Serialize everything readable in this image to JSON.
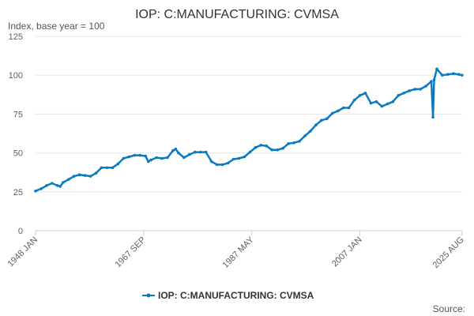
{
  "chart_data": {
    "type": "line",
    "title": "IOP: C:MANUFACTURING: CVMSA",
    "ylabel": "Index, base year = 100",
    "xlabel": "",
    "ylim": [
      0,
      125
    ],
    "yticks": [
      0,
      25,
      50,
      75,
      100,
      125
    ],
    "xlim": [
      1948.0,
      2025.6
    ],
    "xticks": [
      {
        "label": "1948 JAN",
        "x": 1948.0
      },
      {
        "label": "1967 SEP",
        "x": 1967.67
      },
      {
        "label": "1987 MAY",
        "x": 1987.33
      },
      {
        "label": "2007 JAN",
        "x": 2007.0
      },
      {
        "label": "2025 AUG",
        "x": 2025.58
      }
    ],
    "grid": "horizontal",
    "legend_position": "bottom-center",
    "series": [
      {
        "name": "IOP: C:MANUFACTURING: CVMSA",
        "color": "#0b7bc1",
        "x": [
          1948.0,
          1949.0,
          1950.0,
          1951.0,
          1952.0,
          1952.5,
          1953.0,
          1954.0,
          1955.0,
          1956.0,
          1957.0,
          1958.0,
          1959.0,
          1960.0,
          1961.0,
          1962.0,
          1963.0,
          1964.0,
          1965.0,
          1966.0,
          1967.0,
          1968.0,
          1968.5,
          1969.0,
          1970.0,
          1971.0,
          1972.0,
          1973.0,
          1973.5,
          1974.0,
          1975.0,
          1976.0,
          1977.0,
          1978.0,
          1979.0,
          1980.0,
          1981.0,
          1982.0,
          1983.0,
          1984.0,
          1985.0,
          1986.0,
          1987.0,
          1988.0,
          1989.0,
          1990.0,
          1991.0,
          1992.0,
          1993.0,
          1994.0,
          1995.0,
          1996.0,
          1997.0,
          1998.0,
          1999.0,
          2000.0,
          2001.0,
          2002.0,
          2003.0,
          2004.0,
          2005.0,
          2006.0,
          2007.0,
          2008.0,
          2009.0,
          2010.0,
          2011.0,
          2012.0,
          2013.0,
          2014.0,
          2015.0,
          2016.0,
          2017.0,
          2018.0,
          2019.0,
          2020.0,
          2020.3,
          2020.5,
          2021.0,
          2022.0,
          2023.0,
          2024.0,
          2025.0,
          2025.58
        ],
        "values": [
          25.5,
          27.0,
          29.0,
          30.5,
          29.0,
          28.5,
          31.0,
          33.0,
          35.0,
          36.0,
          35.5,
          35.0,
          37.0,
          40.5,
          40.5,
          40.5,
          43.0,
          46.5,
          47.5,
          48.5,
          48.5,
          48.0,
          44.5,
          45.5,
          47.0,
          46.5,
          47.0,
          51.5,
          52.5,
          50.0,
          47.0,
          49.0,
          50.5,
          50.5,
          50.5,
          44.5,
          42.5,
          42.5,
          43.5,
          46.0,
          46.5,
          47.5,
          50.5,
          53.5,
          55.0,
          54.5,
          52.0,
          52.0,
          53.0,
          56.0,
          56.5,
          57.5,
          61.0,
          64.0,
          68.0,
          71.0,
          72.0,
          75.5,
          77.0,
          79.0,
          79.0,
          84.0,
          87.0,
          88.5,
          82.0,
          83.0,
          80.0,
          81.5,
          83.0,
          87.0,
          88.5,
          90.0,
          91.0,
          91.0,
          93.0,
          96.0,
          73.0,
          97.0,
          104.0,
          100.0,
          100.5,
          101.0,
          100.5,
          100.0
        ]
      }
    ],
    "source_label": "Source:"
  }
}
